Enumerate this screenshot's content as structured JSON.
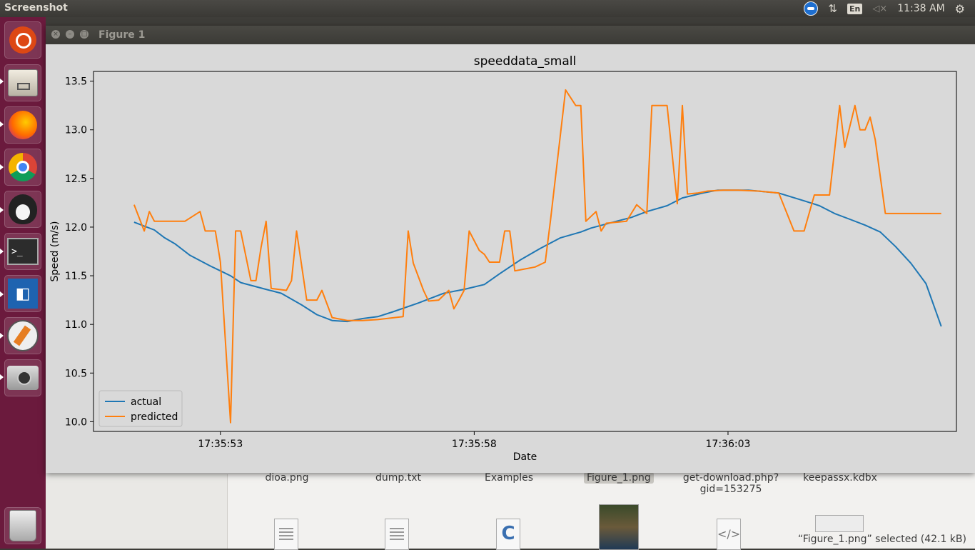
{
  "topbar": {
    "app_title": "Screenshot",
    "keyboard": "En",
    "clock": "11:38 AM"
  },
  "file_manager": {
    "files_row1": [
      {
        "name": "dioa.png"
      },
      {
        "name": "dump.txt"
      },
      {
        "name": "Examples"
      },
      {
        "name": "Figure_1.png",
        "selected": true
      },
      {
        "name": "get-download.php?\ngid=153275"
      },
      {
        "name": "keepassx.kdbx"
      }
    ],
    "status": "“Figure_1.png” selected  (42.1 kB)"
  },
  "figure_window": {
    "title": "Figure 1"
  },
  "colors": {
    "actual": "#1f77b4",
    "predicted": "#ff7f0e",
    "launcher": "#6b1a3d",
    "figure_bg": "#d9d9d9"
  },
  "chart_data": {
    "type": "line",
    "title": "speeddata_small",
    "xlabel": "Date",
    "ylabel": "Speed (m/s)",
    "x_tick_labels": [
      "17:35:53",
      "17:35:58",
      "17:36:03"
    ],
    "x_ticks_seconds": [
      53,
      58,
      63
    ],
    "x_range_seconds": [
      50.5,
      67.5
    ],
    "ylim": [
      9.9,
      13.6
    ],
    "y_ticks": [
      10.0,
      10.5,
      11.0,
      11.5,
      12.0,
      12.5,
      13.0,
      13.5
    ],
    "grid": false,
    "legend_position": "lower-left",
    "series": [
      {
        "name": "actual",
        "color": "#1f77b4",
        "x": [
          51.3,
          51.7,
          51.9,
          52.1,
          52.4,
          52.8,
          53.0,
          53.2,
          53.4,
          53.9,
          54.2,
          54.6,
          54.9,
          55.2,
          55.5,
          55.8,
          56.1,
          56.4,
          56.9,
          57.4,
          57.8,
          58.2,
          58.5,
          58.9,
          59.3,
          59.7,
          60.1,
          60.3,
          60.8,
          61.1,
          61.4,
          61.8,
          62.1,
          62.5,
          62.8,
          63.4,
          64.0,
          64.5,
          64.8,
          65.1,
          65.4,
          65.7,
          66.0,
          66.3,
          66.6,
          66.9,
          67.2
        ],
        "y": [
          12.05,
          11.97,
          11.89,
          11.83,
          11.71,
          11.6,
          11.55,
          11.5,
          11.43,
          11.36,
          11.32,
          11.2,
          11.1,
          11.04,
          11.03,
          11.06,
          11.08,
          11.13,
          11.22,
          11.32,
          11.36,
          11.41,
          11.52,
          11.66,
          11.78,
          11.89,
          11.95,
          11.99,
          12.06,
          12.1,
          12.16,
          12.22,
          12.3,
          12.35,
          12.38,
          12.38,
          12.35,
          12.27,
          12.22,
          12.14,
          12.08,
          12.02,
          11.95,
          11.8,
          11.63,
          11.42,
          10.98
        ]
      },
      {
        "name": "predicted",
        "color": "#ff7f0e",
        "x": [
          51.3,
          51.5,
          51.6,
          51.7,
          51.8,
          52.3,
          52.6,
          52.7,
          52.9,
          53.0,
          53.2,
          53.3,
          53.4,
          53.6,
          53.7,
          53.8,
          53.9,
          54.0,
          54.3,
          54.4,
          54.5,
          54.7,
          54.9,
          55.0,
          55.2,
          55.4,
          55.5,
          55.8,
          56.1,
          56.6,
          56.7,
          56.8,
          57.0,
          57.1,
          57.3,
          57.5,
          57.6,
          57.7,
          57.8,
          57.9,
          58.1,
          58.2,
          58.3,
          58.5,
          58.6,
          58.7,
          58.8,
          58.9,
          59.2,
          59.4,
          59.5,
          59.8,
          60.0,
          60.1,
          60.2,
          60.4,
          60.5,
          60.6,
          60.8,
          61.0,
          61.2,
          61.4,
          61.5,
          61.6,
          61.8,
          62.0,
          62.1,
          62.2,
          62.4,
          62.5,
          62.6,
          62.9,
          63.2,
          63.6,
          64.0,
          64.3,
          64.5,
          64.7,
          64.9,
          65.0,
          65.2,
          65.3,
          65.5,
          65.6,
          65.7,
          65.8,
          65.9,
          66.1,
          66.4,
          66.7,
          66.9,
          67.2
        ],
        "y": [
          12.23,
          11.96,
          12.16,
          12.06,
          12.06,
          12.06,
          12.16,
          11.96,
          11.96,
          11.64,
          9.99,
          11.96,
          11.96,
          11.45,
          11.45,
          11.79,
          12.06,
          11.37,
          11.35,
          11.45,
          11.96,
          11.25,
          11.25,
          11.35,
          11.07,
          11.05,
          11.04,
          11.04,
          11.05,
          11.08,
          11.96,
          11.63,
          11.35,
          11.24,
          11.25,
          11.35,
          11.16,
          11.25,
          11.35,
          11.96,
          11.76,
          11.72,
          11.64,
          11.64,
          11.96,
          11.96,
          11.55,
          11.56,
          11.59,
          11.64,
          12.06,
          13.41,
          13.25,
          13.25,
          12.06,
          12.16,
          11.96,
          12.04,
          12.05,
          12.06,
          12.23,
          12.14,
          13.25,
          13.25,
          13.25,
          12.24,
          13.25,
          12.34,
          12.35,
          12.36,
          12.37,
          12.38,
          12.38,
          12.37,
          12.35,
          11.96,
          11.96,
          12.33,
          12.33,
          12.33,
          13.25,
          12.82,
          13.25,
          13.0,
          13.0,
          13.13,
          12.9,
          12.14,
          12.14,
          12.14,
          12.14,
          12.14
        ]
      }
    ]
  }
}
